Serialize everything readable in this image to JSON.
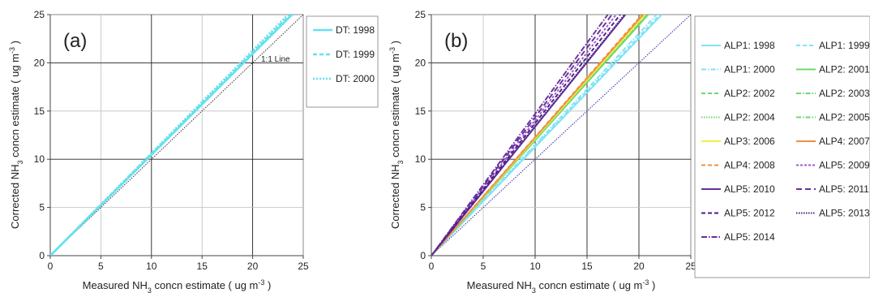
{
  "chart_data": [
    {
      "type": "line",
      "panel_label": "(a)",
      "xlabel": {
        "pre": "Measured NH",
        "sub": "3",
        "mid": " concn estimate ( ug m",
        "sup": "-3",
        "post": " )"
      },
      "ylabel": {
        "pre": "Corrected NH",
        "sub": "3",
        "mid": " concn estimate ( ug m",
        "sup": "-3",
        "post": " )"
      },
      "xlim": [
        0,
        25
      ],
      "ylim": [
        0,
        25
      ],
      "xticks": [
        "0",
        "5",
        "10",
        "15",
        "20",
        "25"
      ],
      "yticks": [
        "0",
        "5",
        "10",
        "15",
        "20",
        "25"
      ],
      "grid": true,
      "legend_position": "right",
      "annotation": "1:1 Line",
      "reference_line": {
        "x": [
          0,
          25
        ],
        "y": [
          0,
          25
        ],
        "color": "#333333",
        "dash": "1.5,1.5"
      },
      "series": [
        {
          "name": "DT: 1998",
          "color": "#66e0f0",
          "dash": "",
          "x": [
            0,
            23.9
          ],
          "y": [
            0,
            25
          ]
        },
        {
          "name": "DT: 1999",
          "color": "#66e0f0",
          "dash": "5,3",
          "x": [
            0,
            23.7
          ],
          "y": [
            0,
            25
          ]
        },
        {
          "name": "DT: 2000",
          "color": "#66e0f0",
          "dash": "2,2",
          "x": [
            0,
            23.5
          ],
          "y": [
            0,
            25
          ]
        }
      ]
    },
    {
      "type": "line",
      "panel_label": "(b)",
      "xlabel": {
        "pre": "Measured NH",
        "sub": "3",
        "mid": " concn estimate ( ug m",
        "sup": "-3",
        "post": " )"
      },
      "ylabel": {
        "pre": "Corrected NH",
        "sub": "3",
        "mid": " concn estimate ( ug m",
        "sup": "-3",
        "post": " )"
      },
      "xlim": [
        0,
        25
      ],
      "ylim": [
        0,
        25
      ],
      "xticks": [
        "0",
        "5",
        "10",
        "15",
        "20",
        "25"
      ],
      "yticks": [
        "0",
        "5",
        "10",
        "15",
        "20",
        "25"
      ],
      "grid": true,
      "legend_position": "right",
      "reference_line": {
        "x": [
          0,
          25
        ],
        "y": [
          0,
          25
        ],
        "color": "#2a2aa0",
        "dash": "1.5,1.5"
      },
      "series": [
        {
          "name": "ALP1: 1998",
          "color": "#7fe3f5",
          "dash": "",
          "x": [
            0,
            22.2
          ],
          "y": [
            0,
            25
          ]
        },
        {
          "name": "ALP1: 1999",
          "color": "#7fe3f5",
          "dash": "5,3",
          "x": [
            0,
            22.0
          ],
          "y": [
            0,
            25
          ]
        },
        {
          "name": "ALP1: 2000",
          "color": "#7fe3f5",
          "dash": "6,2,1.5,2",
          "x": [
            0,
            21.7
          ],
          "y": [
            0,
            25
          ]
        },
        {
          "name": "ALP2: 2001",
          "color": "#6fd86f",
          "dash": "",
          "x": [
            0,
            20.9
          ],
          "y": [
            0,
            25
          ]
        },
        {
          "name": "ALP2: 2002",
          "color": "#6fd86f",
          "dash": "5,3",
          "x": [
            0,
            20.7
          ],
          "y": [
            0,
            25
          ]
        },
        {
          "name": "ALP2: 2003",
          "color": "#6fd86f",
          "dash": "6,2,1.5,2",
          "x": [
            0,
            20.5
          ],
          "y": [
            0,
            25
          ]
        },
        {
          "name": "ALP2: 2004",
          "color": "#6fd86f",
          "dash": "1.5,1.5",
          "x": [
            0,
            20.8
          ],
          "y": [
            0,
            25
          ]
        },
        {
          "name": "ALP2: 2005",
          "color": "#6fd86f",
          "dash": "6,2,1.5,2",
          "x": [
            0,
            20.6
          ],
          "y": [
            0,
            25
          ]
        },
        {
          "name": "ALP3: 2006",
          "color": "#f0f040",
          "dash": "",
          "x": [
            0,
            20.6
          ],
          "y": [
            0,
            25
          ]
        },
        {
          "name": "ALP4: 2007",
          "color": "#f09040",
          "dash": "",
          "x": [
            0,
            20.4
          ],
          "y": [
            0,
            25
          ]
        },
        {
          "name": "ALP4: 2008",
          "color": "#f09040",
          "dash": "5,3",
          "x": [
            0,
            20.3
          ],
          "y": [
            0,
            25
          ]
        },
        {
          "name": "ALP5: 2009",
          "color": "#9b59d0",
          "dash": "3,2",
          "x": [
            0,
            17.8
          ],
          "y": [
            0,
            25
          ]
        },
        {
          "name": "ALP5: 2010",
          "color": "#6a2ea0",
          "dash": "",
          "x": [
            0,
            18.7
          ],
          "y": [
            0,
            25
          ]
        },
        {
          "name": "ALP5: 2011",
          "color": "#6a2ea0",
          "dash": "7,4",
          "x": [
            0,
            17.4
          ],
          "y": [
            0,
            25
          ]
        },
        {
          "name": "ALP5: 2012",
          "color": "#4a2080",
          "dash": "5,3",
          "x": [
            0,
            18.2
          ],
          "y": [
            0,
            25
          ]
        },
        {
          "name": "ALP5: 2013",
          "color": "#4a2080",
          "dash": "1.5,1.5",
          "x": [
            0,
            18.6
          ],
          "y": [
            0,
            25
          ]
        },
        {
          "name": "ALP5: 2014",
          "color": "#6a2ea0",
          "dash": "7,2,1.5,2",
          "x": [
            0,
            17.0
          ],
          "y": [
            0,
            25
          ]
        }
      ]
    }
  ]
}
